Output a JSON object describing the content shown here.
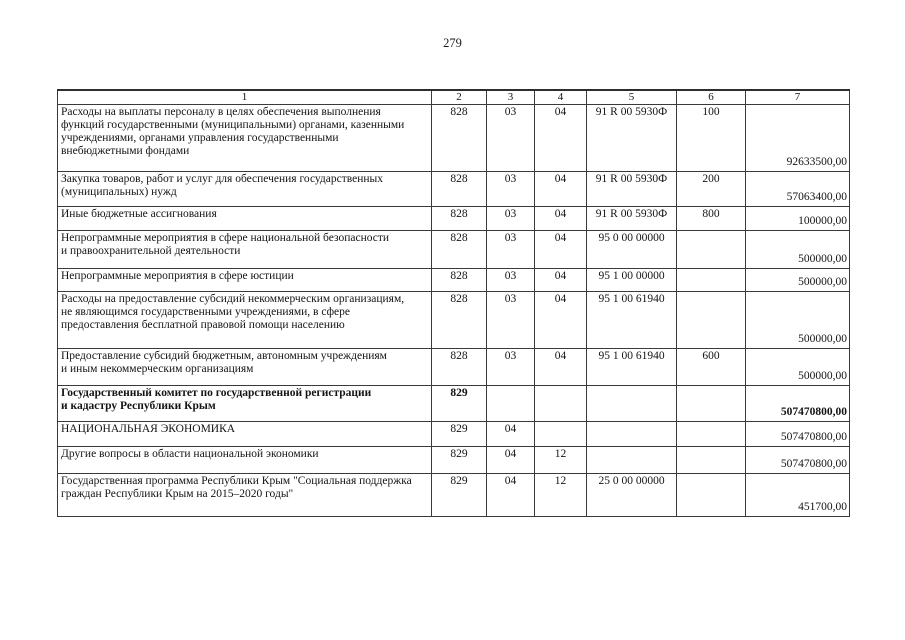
{
  "page": {
    "number": "279"
  },
  "table": {
    "headers": [
      "1",
      "2",
      "3",
      "4",
      "5",
      "6",
      "7"
    ],
    "rows": [
      {
        "text": "Расходы на выплаты персоналу в целях обеспечения выполнения\nфункций государственными (муниципальными) органами, казенными\nучреждениями, органами управления государственными\nвнебюджетными фондами",
        "col2": "828",
        "col3": "03",
        "col4": "04",
        "col5": "91 R 00 5930Ф",
        "col6": "100",
        "amount": "92633500,00",
        "bold": false
      },
      {
        "text": "Закупка товаров, работ и услуг для обеспечения государственных\n(муниципальных) нужд",
        "col2": "828",
        "col3": "03",
        "col4": "04",
        "col5": "91 R 00 5930Ф",
        "col6": "200",
        "amount": "57063400,00",
        "bold": false
      },
      {
        "text": "Иные бюджетные ассигнования",
        "col2": "828",
        "col3": "03",
        "col4": "04",
        "col5": "91 R 00 5930Ф",
        "col6": "800",
        "amount": "100000,00",
        "bold": false
      },
      {
        "text": "Непрограммные мероприятия в сфере национальной безопасности\nи правоохранительной деятельности",
        "col2": "828",
        "col3": "03",
        "col4": "04",
        "col5": "95 0 00 00000",
        "col6": "",
        "amount": "500000,00",
        "bold": false
      },
      {
        "text": "Непрограммные мероприятия в сфере юстиции",
        "col2": "828",
        "col3": "03",
        "col4": "04",
        "col5": "95 1 00 00000",
        "col6": "",
        "amount": "500000,00",
        "bold": false
      },
      {
        "text": "Расходы на предоставление субсидий некоммерческим организациям,\nне являющимся государственными учреждениями, в сфере\nпредоставления бесплатной правовой помощи населению",
        "col2": "828",
        "col3": "03",
        "col4": "04",
        "col5": "95 1 00 61940",
        "col6": "",
        "amount": "500000,00",
        "bold": false
      },
      {
        "text": "Предоставление субсидий бюджетным, автономным учреждениям\nи иным некоммерческим организациям",
        "col2": "828",
        "col3": "03",
        "col4": "04",
        "col5": "95 1 00 61940",
        "col6": "600",
        "amount": "500000,00",
        "bold": false
      },
      {
        "text": "Государственный комитет по государственной регистрации\nи кадастру Республики Крым",
        "col2": "829",
        "col3": "",
        "col4": "",
        "col5": "",
        "col6": "",
        "amount": "507470800,00",
        "bold": true
      },
      {
        "text": "НАЦИОНАЛЬНАЯ ЭКОНОМИКА",
        "col2": "829",
        "col3": "04",
        "col4": "",
        "col5": "",
        "col6": "",
        "amount": "507470800,00",
        "bold": false
      },
      {
        "text": "Другие вопросы в области национальной экономики",
        "col2": "829",
        "col3": "04",
        "col4": "12",
        "col5": "",
        "col6": "",
        "amount": "507470800,00",
        "bold": false
      },
      {
        "text": "Государственная программа Республики Крым \"Социальная поддержка\nграждан Республики Крым на 2015–2020 годы\"",
        "col2": "829",
        "col3": "04",
        "col4": "12",
        "col5": "25 0 00 00000",
        "col6": "",
        "amount": "451700,00",
        "bold": false
      }
    ]
  }
}
